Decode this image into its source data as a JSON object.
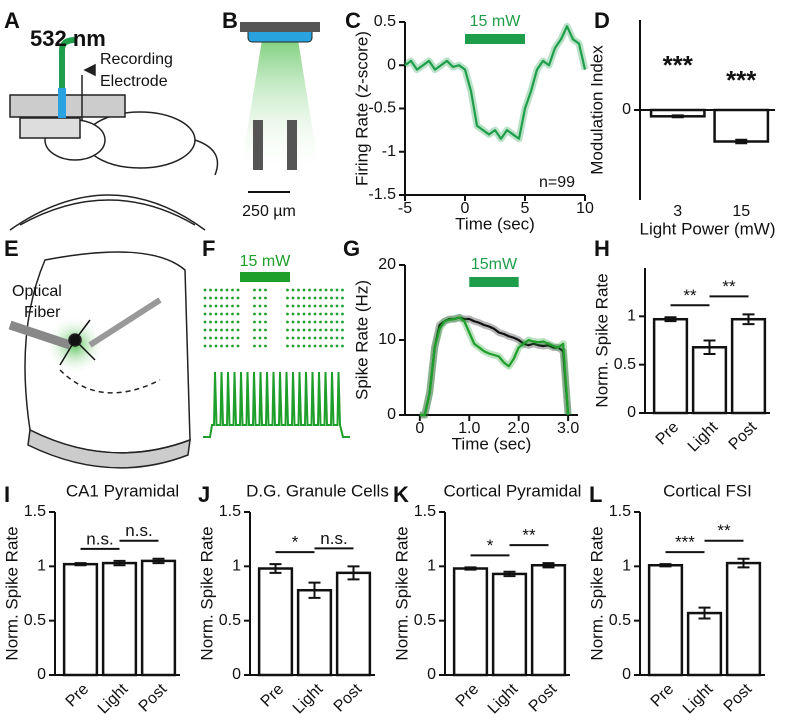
{
  "panel_labels": [
    "A",
    "B",
    "C",
    "D",
    "E",
    "F",
    "G",
    "H",
    "I",
    "J",
    "K",
    "L"
  ],
  "diagrams": {
    "a": {
      "wavelength": "532 nm",
      "electrode_line1": "Recording",
      "electrode_line2": "Electrode"
    },
    "b": {
      "scale": "250 µm"
    },
    "e": {
      "fiber_line1": "Optical",
      "fiber_line2": "Fiber"
    },
    "f": {
      "light_label": "15 mW"
    }
  },
  "chart_data": [
    {
      "type": "line",
      "light_label": "15 mW",
      "light_on": [
        0,
        5
      ],
      "annotation": "n=99",
      "xlabel": "Time (sec)",
      "ylabel": "Firing Rate (z-score)",
      "x": [
        -5,
        -4.5,
        -4,
        -3.5,
        -3,
        -2.5,
        -2,
        -1.5,
        -1,
        -0.5,
        0,
        0.5,
        1,
        1.5,
        2,
        2.5,
        3,
        3.5,
        4,
        4.5,
        5,
        5.5,
        6,
        6.5,
        7,
        7.5,
        8,
        8.5,
        9,
        9.5,
        10
      ],
      "series": [
        {
          "color": "#1e9e4a",
          "values": [
            0,
            0.05,
            -0.05,
            0,
            0.05,
            -0.05,
            0,
            0.05,
            -0.02,
            0,
            -0.05,
            -0.3,
            -0.7,
            -0.75,
            -0.8,
            -0.75,
            -0.85,
            -0.75,
            -0.8,
            -0.85,
            -0.5,
            -0.3,
            -0.05,
            0.05,
            0,
            0.2,
            0.3,
            0.45,
            0.3,
            0.25,
            -0.05
          ]
        }
      ],
      "xlim": [
        -5,
        10
      ],
      "xticks": [
        -5,
        0,
        5,
        10
      ],
      "ylim": [
        -1.5,
        0.5
      ],
      "yticks": [
        -1.5,
        -1,
        -0.5,
        0,
        0.5
      ]
    },
    {
      "type": "bar",
      "xlabel": "Light Power (mW)",
      "ylabel": "Modulation Index",
      "categories": [
        "3",
        "15"
      ],
      "values": [
        -0.07,
        -0.35
      ],
      "errors": [
        0.01,
        0.02
      ],
      "significance": [
        "***",
        "***"
      ],
      "ylim": [
        -1,
        1
      ],
      "yticks": [
        0
      ]
    },
    {
      "type": "line",
      "light_label": "15mW",
      "light_on": [
        1,
        2
      ],
      "xlabel": "Time (sec)",
      "ylabel": "Spike Rate (Hz)",
      "x": [
        0,
        0.1,
        0.2,
        0.3,
        0.4,
        0.5,
        0.6,
        0.7,
        0.8,
        0.9,
        1,
        1.1,
        1.2,
        1.3,
        1.4,
        1.5,
        1.6,
        1.7,
        1.8,
        1.9,
        2,
        2.1,
        2.2,
        2.3,
        2.4,
        2.5,
        2.6,
        2.7,
        2.8,
        2.9,
        3
      ],
      "series": [
        {
          "color": "#111111",
          "values": [
            0,
            0,
            3,
            9,
            12,
            12.5,
            12.8,
            12.8,
            13,
            12.8,
            12.8,
            12.5,
            12.3,
            12,
            11.8,
            11.5,
            11,
            10.8,
            10.5,
            10.3,
            10,
            9.5,
            9.3,
            9.5,
            9.3,
            9.2,
            9.3,
            9,
            9,
            8.5,
            0
          ]
        },
        {
          "color": "#1e9e2a",
          "values": [
            0,
            0,
            3,
            9,
            11.5,
            12.5,
            12.7,
            12.8,
            13,
            12.5,
            11,
            9.5,
            9,
            8.5,
            8.2,
            8,
            7.8,
            7,
            6.5,
            7.5,
            9,
            9.5,
            10,
            9.8,
            9.7,
            9.8,
            9.5,
            9.2,
            9,
            9.5,
            0
          ]
        }
      ],
      "xlim": [
        -0.3,
        3.2
      ],
      "xticks": [
        0,
        {
          "value": 1,
          "label": "1.0"
        },
        {
          "value": 2,
          "label": "2.0"
        },
        {
          "value": 3,
          "label": "3.0"
        }
      ],
      "ylim": [
        0,
        20
      ],
      "yticks": [
        0,
        10,
        20
      ]
    },
    {
      "type": "bar",
      "ylabel": "Norm. Spike Rate",
      "categories": [
        "Pre",
        "Light",
        "Post"
      ],
      "values": [
        0.97,
        0.68,
        0.97
      ],
      "errors": [
        0.02,
        0.07,
        0.05
      ],
      "significance_bars": [
        "**",
        "**"
      ],
      "ylim": [
        0,
        1.5
      ],
      "yticks": [
        0,
        0.5,
        1
      ]
    },
    {
      "type": "bar",
      "title": "CA1 Pyramidal",
      "ylabel": "Norm. Spike Rate",
      "categories": [
        "Pre",
        "Light",
        "Post"
      ],
      "values": [
        1.02,
        1.03,
        1.05
      ],
      "errors": [
        0.01,
        0.02,
        0.02
      ],
      "significance_bars": [
        "n.s.",
        "n.s."
      ],
      "ylim": [
        0,
        1.5
      ],
      "yticks": [
        0,
        0.5,
        1,
        1.5
      ]
    },
    {
      "type": "bar",
      "title": "D.G. Granule Cells",
      "ylabel": "Norm. Spike Rate",
      "categories": [
        "Pre",
        "Light",
        "Post"
      ],
      "values": [
        0.98,
        0.78,
        0.94
      ],
      "errors": [
        0.04,
        0.07,
        0.06
      ],
      "significance_bars": [
        "*",
        "n.s."
      ],
      "ylim": [
        0,
        1.5
      ],
      "yticks": [
        0,
        0.5,
        1,
        1.5
      ]
    },
    {
      "type": "bar",
      "title": "Cortical Pyramidal",
      "ylabel": "Norm. Spike Rate",
      "categories": [
        "Pre",
        "Light",
        "Post"
      ],
      "values": [
        0.98,
        0.93,
        1.01
      ],
      "errors": [
        0.01,
        0.02,
        0.02
      ],
      "significance_bars": [
        "*",
        "**"
      ],
      "ylim": [
        0,
        1.5
      ],
      "yticks": [
        0,
        0.5,
        1,
        1.5
      ]
    },
    {
      "type": "bar",
      "title": "Cortical FSI",
      "ylabel": "Norm. Spike Rate",
      "categories": [
        "Pre",
        "Light",
        "Post"
      ],
      "values": [
        1.01,
        0.57,
        1.03
      ],
      "errors": [
        0.01,
        0.05,
        0.04
      ],
      "significance_bars": [
        "***",
        "**"
      ],
      "ylim": [
        0,
        1.5
      ],
      "yticks": [
        0,
        0.5,
        1,
        1.5
      ]
    }
  ]
}
